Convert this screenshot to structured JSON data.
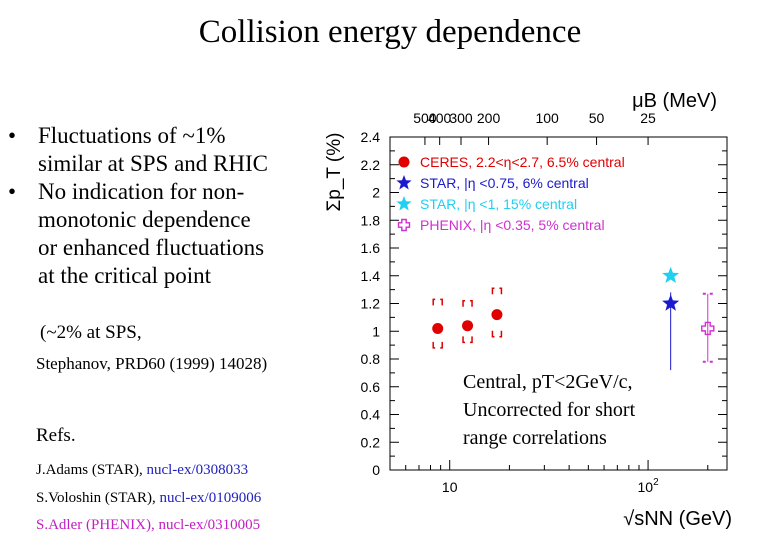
{
  "slide": {
    "title": "Collision energy dependence",
    "bullets": [
      {
        "symbol": "•",
        "lines": [
          "Fluctuations of  ~1%",
          "similar at SPS and RHIC"
        ]
      },
      {
        "symbol": "•",
        "lines": [
          "No indication for non-",
          "monotonic dependence",
          "or enhanced fluctuations",
          "at the critical point"
        ]
      }
    ],
    "note_line1": "(~2% at SPS,",
    "note_line2": "Stephanov, PRD60 (1999) 14028)",
    "refs_label": "Refs.",
    "refs": [
      {
        "author": "J.Adams (STAR), ",
        "id": "nucl-ex/0308033",
        "color": "#2020c0"
      },
      {
        "author": "S.Voloshin (STAR), ",
        "id": "nucl-ex/0109006",
        "color": "#2020c0"
      },
      {
        "author": "S.Adler (PHENIX), ",
        "id": "nucl-ex/0310005",
        "color": "#c020c0"
      }
    ],
    "chart_note": [
      "Central, pT<2GeV/c,",
      "Uncorrected for short",
      "range correlations"
    ]
  },
  "chart_data": {
    "type": "scatter",
    "xscale": "log",
    "xlim": [
      5,
      250
    ],
    "ylim": [
      0,
      2.4
    ],
    "xlabel": "√sNN (GeV)",
    "ylabel": "Σp_T (%)",
    "x_ticks": [
      {
        "value": 10,
        "label": "10"
      },
      {
        "value": 100,
        "label": "10",
        "sup": "2"
      }
    ],
    "y_ticks": [
      {
        "value": 0,
        "label": "0"
      },
      {
        "value": 0.2,
        "label": "0.2"
      },
      {
        "value": 0.4,
        "label": "0.4"
      },
      {
        "value": 0.6,
        "label": "0.6"
      },
      {
        "value": 0.8,
        "label": "0.8"
      },
      {
        "value": 1,
        "label": "1"
      },
      {
        "value": 1.2,
        "label": "1.2"
      },
      {
        "value": 1.4,
        "label": "1.4"
      },
      {
        "value": 1.6,
        "label": "1.6"
      },
      {
        "value": 1.8,
        "label": "1.8"
      },
      {
        "value": 2,
        "label": "2"
      },
      {
        "value": 2.2,
        "label": "2.2"
      },
      {
        "value": 2.4,
        "label": "2.4"
      }
    ],
    "top_axis": {
      "label": "μB (MeV)",
      "ticks": [
        {
          "x": 7.5,
          "label": "500"
        },
        {
          "x": 8.9,
          "label": "400"
        },
        {
          "x": 11.4,
          "label": "300"
        },
        {
          "x": 15.7,
          "label": "200"
        },
        {
          "x": 31,
          "label": "100"
        },
        {
          "x": 55,
          "label": "50"
        },
        {
          "x": 100,
          "label": "25"
        }
      ]
    },
    "grid": false,
    "legend_position": "top-right",
    "series": [
      {
        "name": "CERES, 2.2<η<2.7, 6.5% central",
        "color": "#e00000",
        "marker": "circle",
        "points": [
          {
            "x": 8.7,
            "y": 1.02,
            "sys": [
              0.88,
              1.23
            ]
          },
          {
            "x": 12.3,
            "y": 1.04,
            "sys": [
              0.92,
              1.22
            ]
          },
          {
            "x": 17.3,
            "y": 1.12,
            "sys": [
              0.96,
              1.31
            ]
          }
        ]
      },
      {
        "name": "STAR, |η <0.75, 6% central",
        "color": "#1a1ad0",
        "marker": "star",
        "points": [
          {
            "x": 130,
            "y": 1.2,
            "err": [
              0.72,
              1.28
            ]
          }
        ]
      },
      {
        "name": "STAR, |η <1, 15% central",
        "color": "#20d0f0",
        "marker": "star",
        "points": [
          {
            "x": 130,
            "y": 1.4
          }
        ]
      },
      {
        "name": "PHENIX, |η <0.35, 5% central",
        "color": "#d030d0",
        "marker": "open-cross",
        "points": [
          {
            "x": 200,
            "y": 1.02,
            "sys": [
              0.78,
              1.27
            ]
          }
        ]
      }
    ]
  }
}
